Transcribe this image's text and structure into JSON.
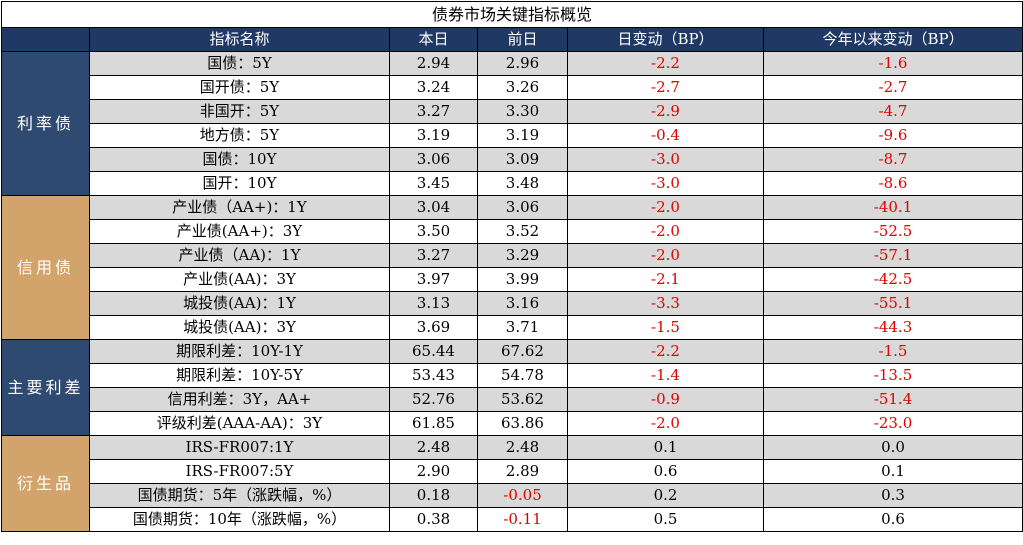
{
  "title": "债券市场关键指标概览",
  "headers": [
    "",
    "指标名称",
    "本日",
    "前日",
    "日变动（BP）",
    "今年以来变动（BP）"
  ],
  "groups": [
    {
      "name": "利率债",
      "color": "#2e4a70",
      "rows": [
        {
          "name": "国债：5Y",
          "today": "2.94",
          "prev": "2.96",
          "day_bp": "-2.2",
          "ytd_bp": "-1.6"
        },
        {
          "name": "国开债：5Y",
          "today": "3.24",
          "prev": "3.26",
          "day_bp": "-2.7",
          "ytd_bp": "-2.7"
        },
        {
          "name": "非国开：5Y",
          "today": "3.27",
          "prev": "3.30",
          "day_bp": "-2.9",
          "ytd_bp": "-4.7"
        },
        {
          "name": "地方债：5Y",
          "today": "3.19",
          "prev": "3.19",
          "day_bp": "-0.4",
          "ytd_bp": "-9.6"
        },
        {
          "name": "国债：10Y",
          "today": "3.06",
          "prev": "3.09",
          "day_bp": "-3.0",
          "ytd_bp": "-8.7"
        },
        {
          "name": "国开：10Y",
          "today": "3.45",
          "prev": "3.48",
          "day_bp": "-3.0",
          "ytd_bp": "-8.6"
        }
      ]
    },
    {
      "name": "信用债",
      "color": "#d2a36b",
      "rows": [
        {
          "name": "产业债（AA+)：1Y",
          "today": "3.04",
          "prev": "3.06",
          "day_bp": "-2.0",
          "ytd_bp": "-40.1"
        },
        {
          "name": "产业债(AA+)：3Y",
          "today": "3.50",
          "prev": "3.52",
          "day_bp": "-2.0",
          "ytd_bp": "-52.5"
        },
        {
          "name": "产业债（AA)：1Y",
          "today": "3.27",
          "prev": "3.29",
          "day_bp": "-2.0",
          "ytd_bp": "-57.1"
        },
        {
          "name": "产业债(AA)：3Y",
          "today": "3.97",
          "prev": "3.99",
          "day_bp": "-2.1",
          "ytd_bp": "-42.5"
        },
        {
          "name": "城投债(AA)：1Y",
          "today": "3.13",
          "prev": "3.16",
          "day_bp": "-3.3",
          "ytd_bp": "-55.1"
        },
        {
          "name": "城投债(AA)：3Y",
          "today": "3.69",
          "prev": "3.71",
          "day_bp": "-1.5",
          "ytd_bp": "-44.3"
        }
      ]
    },
    {
      "name": "主要利差",
      "color": "#2e4a70",
      "rows": [
        {
          "name": "期限利差：10Y-1Y",
          "today": "65.44",
          "prev": "67.62",
          "day_bp": "-2.2",
          "ytd_bp": "-1.5"
        },
        {
          "name": "期限利差：10Y-5Y",
          "today": "53.43",
          "prev": "54.78",
          "day_bp": "-1.4",
          "ytd_bp": "-13.5"
        },
        {
          "name": "信用利差：3Y，AA+",
          "today": "52.76",
          "prev": "53.62",
          "day_bp": "-0.9",
          "ytd_bp": "-51.4"
        },
        {
          "name": "评级利差(AAA-AA)：3Y",
          "today": "61.85",
          "prev": "63.86",
          "day_bp": "-2.0",
          "ytd_bp": "-23.0"
        }
      ]
    },
    {
      "name": "衍生品",
      "color": "#d2a36b",
      "rows": [
        {
          "name": "IRS-FR007:1Y",
          "today": "2.48",
          "prev": "2.48",
          "day_bp": "0.1",
          "ytd_bp": "0.0"
        },
        {
          "name": "IRS-FR007:5Y",
          "today": "2.90",
          "prev": "2.89",
          "day_bp": "0.6",
          "ytd_bp": "0.1"
        },
        {
          "name": "国债期货：5年（涨跌幅，%）",
          "today": "0.18",
          "prev": "-0.05",
          "day_bp": "0.2",
          "ytd_bp": "0.3"
        },
        {
          "name": "国债期货：10年（涨跌幅，%）",
          "today": "0.38",
          "prev": "-0.11",
          "day_bp": "0.5",
          "ytd_bp": "0.6"
        }
      ]
    }
  ]
}
